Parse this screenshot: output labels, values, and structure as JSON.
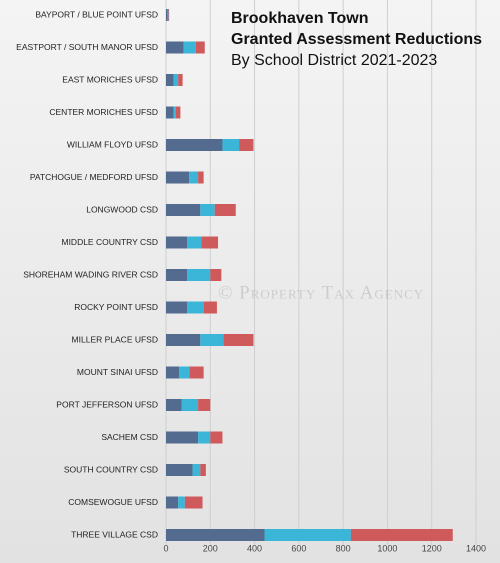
{
  "chart_data": {
    "type": "stacked-bar-horizontal",
    "title": [
      "Brookhaven Town",
      "Granted Assessment Reductions"
    ],
    "subtitle": "By School District 2021-2023",
    "watermark": "© Property Tax Agency",
    "categories": [
      "BAYPORT / BLUE POINT UFSD",
      "EASTPORT / SOUTH MANOR UFSD",
      "EAST MORICHES UFSD",
      "CENTER MORICHES UFSD",
      "WILLIAM FLOYD UFSD",
      "PATCHOGUE / MEDFORD UFSD",
      "LONGWOOD CSD",
      "MIDDLE COUNTRY CSD",
      "SHOREHAM WADING RIVER CSD",
      "ROCKY POINT UFSD",
      "MILLER PLACE UFSD",
      "MOUNT SINAI UFSD",
      "PORT JEFFERSON UFSD",
      "SACHEM CSD",
      "SOUTH COUNTRY CSD",
      "COMSEWOGUE UFSD",
      "THREE VILLAGE CSD"
    ],
    "series": [
      {
        "color": "#536b8e",
        "values": [
          8,
          80,
          35,
          35,
          255,
          105,
          155,
          95,
          95,
          95,
          155,
          60,
          70,
          145,
          120,
          55,
          445
        ]
      },
      {
        "color": "#3bb5d8",
        "values": [
          3,
          55,
          20,
          10,
          75,
          40,
          65,
          65,
          105,
          75,
          105,
          45,
          75,
          55,
          35,
          30,
          390
        ]
      },
      {
        "color": "#cf5a5c",
        "values": [
          3,
          40,
          20,
          20,
          65,
          25,
          95,
          75,
          50,
          60,
          135,
          65,
          55,
          55,
          25,
          80,
          460
        ]
      }
    ],
    "xlim": [
      0,
      1400
    ],
    "xticks": [
      0,
      200,
      400,
      600,
      800,
      1000,
      1200,
      1400
    ],
    "grid": true
  }
}
